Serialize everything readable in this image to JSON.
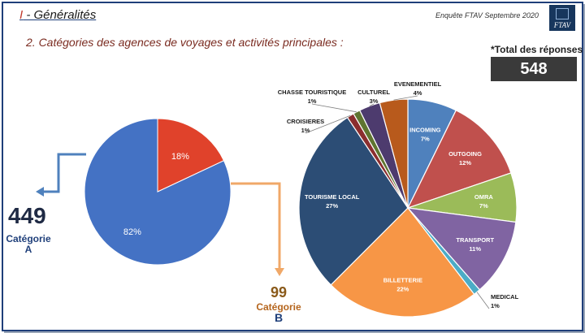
{
  "header": {
    "roman": "I",
    "section": " - Généralités",
    "survey": "Enquête FTAV Septembre 2020",
    "logo_text": "FTAV",
    "subtitle": "2. Catégories des agences de voyages et activités principales :"
  },
  "total": {
    "label": "*Total des réponses",
    "value": "548"
  },
  "category_a": {
    "count": "449",
    "label_line1": "Catégorie",
    "label_line2": "A",
    "color": "#1f3f7a"
  },
  "category_b": {
    "count": "99",
    "label_line1": "Catégorie",
    "label_line2": "B",
    "color": "#b5651d"
  },
  "chart_data": [
    {
      "type": "pie",
      "categories": [
        "",
        ""
      ],
      "values": [
        82,
        18
      ],
      "labels": [
        "82%",
        "18%"
      ],
      "colors": [
        "#4472c4",
        "#e0422b"
      ]
    },
    {
      "type": "pie",
      "categories": [
        "INCOMING",
        "OUTGOING",
        "OMRA",
        "TRANSPORT",
        "MEDICAL",
        "BILLETTERIE",
        "TOURISME LOCAL",
        "CROISIERES",
        "CHASSE TOURISTIQUE",
        "CULTUREL",
        "EVENEMENTIEL"
      ],
      "values": [
        7,
        12,
        7,
        11,
        1,
        22,
        27,
        1,
        1,
        3,
        4
      ],
      "labels": [
        "7%",
        "12%",
        "7%",
        "11%",
        "1%",
        "22%",
        "27%",
        "1%",
        "1%",
        "3%",
        "4%"
      ],
      "colors": [
        "#4f81bd",
        "#c0504d",
        "#9bbb59",
        "#8064a2",
        "#4bacc6",
        "#f79646",
        "#2c4d75",
        "#8b2e2e",
        "#5f7530",
        "#4d3b6e",
        "#b85a1c"
      ]
    }
  ]
}
